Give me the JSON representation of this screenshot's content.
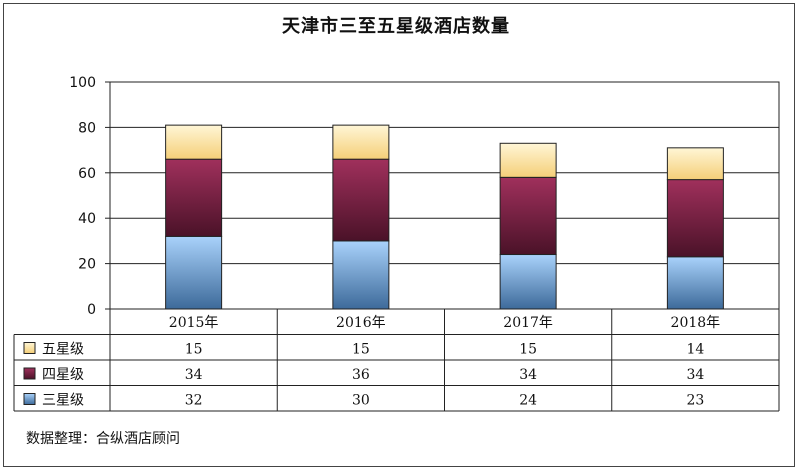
{
  "chart_data": {
    "type": "bar",
    "stacked": true,
    "title": "天津市三至五星级酒店数量",
    "categories": [
      "2015年",
      "2016年",
      "2017年",
      "2018年"
    ],
    "series": [
      {
        "name": "五星级",
        "values": [
          15,
          15,
          15,
          14
        ],
        "color": "#ffe8a8"
      },
      {
        "name": "四星级",
        "values": [
          34,
          36,
          34,
          34
        ],
        "color": "#7a2346"
      },
      {
        "name": "三星级",
        "values": [
          32,
          30,
          24,
          23
        ],
        "color": "#5a8ec8"
      }
    ],
    "ylim": [
      0,
      100
    ],
    "yticks": [
      0,
      20,
      40,
      60,
      80,
      100
    ],
    "grid": true,
    "data_table": true
  },
  "source": "数据整理：合纵酒店顾问"
}
